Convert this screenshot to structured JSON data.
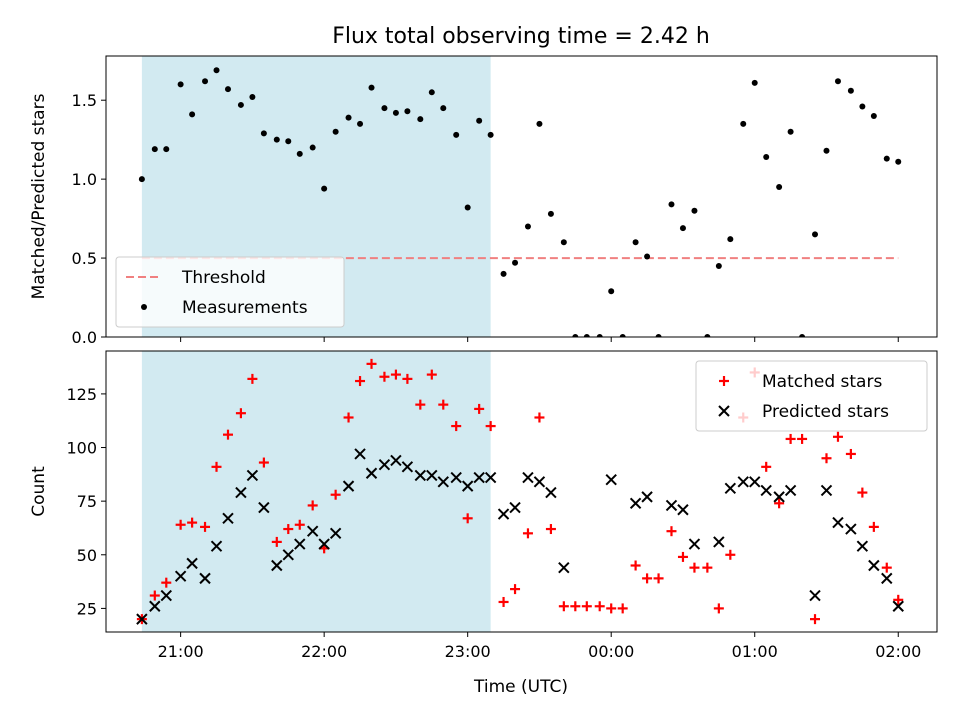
{
  "chart_data": {
    "title": "Flux total observing time = 2.42 h",
    "xlabel": "Time (UTC)",
    "x_tick_labels": [
      "21:00",
      "22:00",
      "23:00",
      "00:00",
      "01:00",
      "02:00"
    ],
    "x_tick_hours": [
      21,
      22,
      23,
      24,
      25,
      26
    ],
    "shaded_span_hours": [
      20.73,
      23.16
    ],
    "shade_color": "#add8e6",
    "panels": [
      {
        "type": "scatter",
        "ylabel": "Matched/Predicted stars",
        "ylim": [
          0,
          1.78
        ],
        "y_tick_values": [
          0,
          0.5,
          1.0,
          1.5
        ],
        "y_tick_labels": [
          "0.0",
          "0.5",
          "1.0",
          "1.5"
        ],
        "legend_position": "lower-left",
        "threshold": {
          "name": "Threshold",
          "value": 0.5,
          "x_range": [
            20.73,
            26.0
          ],
          "color": "#f08080"
        },
        "series": [
          {
            "name": "Measurements",
            "marker": "dot",
            "color": "#000000",
            "x": [
              20.73,
              20.82,
              20.9,
              21.0,
              21.08,
              21.17,
              21.25,
              21.33,
              21.42,
              21.5,
              21.58,
              21.67,
              21.75,
              21.83,
              21.92,
              22.0,
              22.08,
              22.17,
              22.25,
              22.33,
              22.42,
              22.5,
              22.58,
              22.67,
              22.75,
              22.83,
              22.92,
              23.0,
              23.08,
              23.16,
              23.25,
              23.33,
              23.42,
              23.5,
              23.58,
              23.67,
              23.75,
              23.83,
              23.92,
              24.0,
              24.08,
              24.17,
              24.25,
              24.33,
              24.42,
              24.5,
              24.58,
              24.67,
              24.75,
              24.83,
              24.92,
              25.0,
              25.08,
              25.17,
              25.25,
              25.33,
              25.42,
              25.5,
              25.58,
              25.67,
              25.75,
              25.83,
              25.92,
              26.0
            ],
            "y": [
              1.0,
              1.19,
              1.19,
              1.6,
              1.41,
              1.62,
              1.69,
              1.57,
              1.47,
              1.52,
              1.29,
              1.25,
              1.24,
              1.16,
              1.2,
              0.94,
              1.3,
              1.39,
              1.35,
              1.58,
              1.45,
              1.42,
              1.43,
              1.38,
              1.55,
              1.45,
              1.28,
              0.82,
              1.37,
              1.28,
              0.4,
              0.47,
              0.7,
              1.35,
              0.78,
              0.6,
              0.0,
              0.0,
              0.0,
              0.29,
              0.0,
              0.6,
              0.51,
              0.0,
              0.84,
              0.69,
              0.8,
              0.0,
              0.45,
              0.62,
              1.35,
              1.61,
              1.14,
              0.95,
              1.3,
              0.0,
              0.65,
              1.18,
              1.62,
              1.56,
              1.46,
              1.4,
              1.13,
              1.11
            ]
          }
        ]
      },
      {
        "type": "scatter",
        "ylabel": "Count",
        "ylim": [
          14,
          145
        ],
        "y_tick_values": [
          25,
          50,
          75,
          100,
          125
        ],
        "y_tick_labels": [
          "25",
          "50",
          "75",
          "100",
          "125"
        ],
        "legend_position": "upper-right",
        "series": [
          {
            "name": "Matched stars",
            "marker": "plus",
            "color": "#ff0000",
            "x": [
              20.73,
              20.82,
              20.9,
              21.0,
              21.08,
              21.17,
              21.25,
              21.33,
              21.42,
              21.5,
              21.58,
              21.67,
              21.75,
              21.83,
              21.92,
              22.0,
              22.08,
              22.17,
              22.25,
              22.33,
              22.42,
              22.5,
              22.58,
              22.67,
              22.75,
              22.83,
              22.92,
              23.0,
              23.08,
              23.16,
              23.25,
              23.33,
              23.42,
              23.5,
              23.58,
              23.67,
              23.75,
              23.83,
              23.92,
              24.0,
              24.08,
              24.17,
              24.25,
              24.33,
              24.42,
              24.5,
              24.58,
              24.67,
              24.75,
              24.83,
              24.92,
              25.0,
              25.08,
              25.17,
              25.25,
              25.33,
              25.42,
              25.5,
              25.58,
              25.67,
              25.75,
              25.83,
              25.92,
              26.0
            ],
            "y": [
              20,
              31,
              37,
              64,
              65,
              63,
              91,
              106,
              116,
              132,
              93,
              56,
              62,
              64,
              73,
              53,
              78,
              114,
              131,
              139,
              133,
              134,
              132,
              120,
              134,
              120,
              110,
              67,
              118,
              110,
              28,
              34,
              60,
              114,
              62,
              26,
              26,
              26,
              26,
              25,
              25,
              45,
              39,
              39,
              61,
              49,
              44,
              44,
              25,
              50,
              114,
              135,
              91,
              74,
              104,
              104,
              20,
              95,
              105,
              97,
              79,
              63,
              44,
              29
            ]
          },
          {
            "name": "Predicted stars",
            "marker": "x",
            "color": "#000000",
            "x": [
              20.73,
              20.82,
              20.9,
              21.0,
              21.08,
              21.17,
              21.25,
              21.33,
              21.42,
              21.5,
              21.58,
              21.67,
              21.75,
              21.83,
              21.92,
              22.0,
              22.08,
              22.17,
              22.25,
              22.33,
              22.42,
              22.5,
              22.58,
              22.67,
              22.75,
              22.83,
              22.92,
              23.0,
              23.08,
              23.16,
              23.25,
              23.33,
              23.42,
              23.5,
              23.58,
              23.67,
              24.0,
              24.17,
              24.25,
              24.42,
              24.5,
              24.58,
              24.75,
              24.83,
              24.92,
              25.0,
              25.08,
              25.17,
              25.25,
              25.42,
              25.5,
              25.58,
              25.67,
              25.75,
              25.83,
              25.92,
              26.0
            ],
            "y": [
              20,
              26,
              31,
              40,
              46,
              39,
              54,
              67,
              79,
              87,
              72,
              45,
              50,
              55,
              61,
              55,
              60,
              82,
              97,
              88,
              92,
              94,
              91,
              87,
              87,
              84,
              86,
              82,
              86,
              86,
              69,
              72,
              86,
              84,
              79,
              44,
              85,
              74,
              77,
              73,
              71,
              55,
              56,
              81,
              84,
              84,
              80,
              77,
              80,
              31,
              80,
              65,
              62,
              54,
              45,
              39,
              26
            ]
          }
        ]
      }
    ]
  }
}
